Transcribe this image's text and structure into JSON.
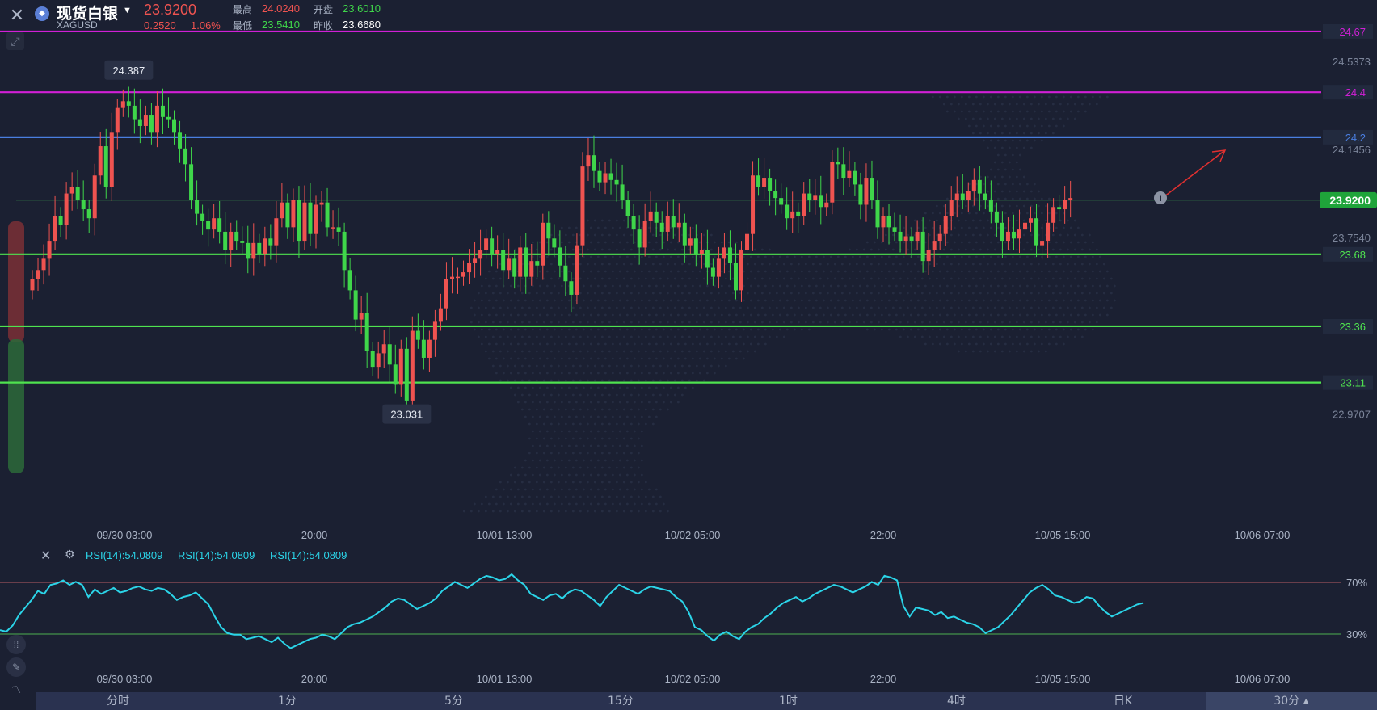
{
  "header": {
    "close_icon": "close-icon",
    "name": "现货白银",
    "symbol": "XAGUSD",
    "price": "23.9200",
    "change": "0.2520",
    "change_pct": "1.06%",
    "high_label": "最高",
    "high": "24.0240",
    "open_label": "开盘",
    "open": "23.6010",
    "low_label": "最低",
    "low": "23.5410",
    "prev_label": "昨收",
    "prev": "23.6680"
  },
  "rsi_legend": [
    "RSI(14):54.0809",
    "RSI(14):54.0809",
    "RSI(14):54.0809"
  ],
  "timeframes": [
    "分时",
    "1分",
    "5分",
    "15分",
    "1时",
    "4时",
    "日K"
  ],
  "timeframe_right": "30分",
  "colors": {
    "up": "#ef5350",
    "down": "#3fd64a",
    "rsi": "#2bd4e8",
    "magenta": "#d11fd6",
    "blue": "#4a7ee0",
    "green_line": "#4fe34f"
  },
  "chart_data": {
    "type": "candlestick",
    "title": "现货白银",
    "y_range": [
      22.8,
      24.72
    ],
    "y_ticks": [
      "24.5373",
      "24.1456",
      "23.7540",
      "22.9707"
    ],
    "x_ticks": [
      "09/30 03:00",
      "20:00",
      "10/01 13:00",
      "10/02 05:00",
      "22:00",
      "10/05 15:00",
      "10/06 07:00"
    ],
    "current_price": "23.9200",
    "horizontal_lines": [
      {
        "value": 24.67,
        "label": "24.67",
        "color": "#d11fd6"
      },
      {
        "value": 24.4,
        "label": "24.4",
        "color": "#d11fd6"
      },
      {
        "value": 24.2,
        "label": "24.2",
        "color": "#4a7ee0"
      },
      {
        "value": 23.68,
        "label": "23.68",
        "color": "#4fe34f"
      },
      {
        "value": 23.36,
        "label": "23.36",
        "color": "#4fe34f"
      },
      {
        "value": 23.11,
        "label": "23.11",
        "color": "#4fe34f"
      }
    ],
    "annotations": [
      {
        "label": "24.387",
        "value": 24.387,
        "index": 17
      },
      {
        "label": "23.031",
        "value": 23.031,
        "index": 66
      }
    ],
    "closes": [
      23.57,
      23.61,
      23.66,
      23.74,
      23.85,
      23.81,
      23.95,
      23.98,
      23.92,
      23.88,
      23.84,
      24.03,
      24.16,
      23.98,
      24.22,
      24.33,
      24.36,
      24.34,
      24.28,
      24.25,
      24.3,
      24.22,
      24.34,
      24.29,
      24.28,
      24.22,
      24.15,
      24.08,
      23.92,
      23.86,
      23.83,
      23.79,
      23.84,
      23.78,
      23.7,
      23.78,
      23.74,
      23.73,
      23.66,
      23.73,
      23.68,
      23.75,
      23.72,
      23.84,
      23.91,
      23.8,
      23.92,
      23.74,
      23.91,
      23.77,
      23.9,
      23.91,
      23.8,
      23.8,
      23.78,
      23.61,
      23.52,
      23.39,
      23.42,
      23.25,
      23.18,
      23.24,
      23.28,
      23.19,
      23.1,
      23.26,
      23.03,
      23.34,
      23.3,
      23.22,
      23.3,
      23.38,
      23.44,
      23.57,
      23.58,
      23.58,
      23.6,
      23.64,
      23.66,
      23.7,
      23.75,
      23.68,
      23.7,
      23.61,
      23.66,
      23.58,
      23.71,
      23.58,
      23.65,
      23.63,
      23.82,
      23.75,
      23.71,
      23.63,
      23.56,
      23.5,
      23.72,
      24.07,
      24.12,
      24.05,
      24.0,
      24.04,
      24.01,
      23.99,
      23.92,
      23.85,
      23.79,
      23.71,
      23.83,
      23.87,
      23.82,
      23.78,
      23.85,
      23.8,
      23.82,
      23.72,
      23.75,
      23.68,
      23.7,
      23.62,
      23.58,
      23.66,
      23.71,
      23.64,
      23.52,
      23.7,
      23.77,
      24.03,
      23.98,
      24.02,
      23.96,
      23.93,
      23.9,
      23.84,
      23.87,
      23.85,
      23.95,
      23.92,
      23.94,
      23.89,
      23.91,
      24.09,
      24.08,
      24.02,
      24.05,
      23.99,
      23.9,
      24.02,
      23.92,
      23.8,
      23.85,
      23.8,
      23.78,
      23.74,
      23.76,
      23.74,
      23.78,
      23.65,
      23.7,
      23.74,
      23.77,
      23.85,
      23.92,
      23.95,
      23.92,
      23.96,
      24.01,
      23.95,
      23.92,
      23.87,
      23.82,
      23.74,
      23.78,
      23.75,
      23.79,
      23.82,
      23.84,
      23.72,
      23.74,
      23.82,
      23.89,
      23.88,
      23.92,
      23.93
    ],
    "rsi": {
      "label": "RSI(14):54.0809",
      "levels": [
        70,
        30
      ],
      "level_labels": [
        "70%",
        "30%"
      ],
      "y_range": [
        20,
        80
      ],
      "values": [
        36,
        35,
        39,
        46,
        51,
        56,
        62,
        60,
        66,
        67,
        69,
        66,
        68,
        66,
        58,
        63,
        60,
        62,
        64,
        61,
        62,
        64,
        65,
        63,
        62,
        64,
        63,
        60,
        56,
        58,
        59,
        61,
        57,
        53,
        45,
        38,
        34,
        33,
        33,
        30,
        31,
        32,
        30,
        28,
        31,
        27,
        24,
        26,
        28,
        30,
        31,
        33,
        32,
        30,
        34,
        38,
        40,
        41,
        43,
        45,
        48,
        51,
        55,
        57,
        56,
        53,
        50,
        52,
        54,
        57,
        62,
        65,
        68,
        66,
        64,
        67,
        70,
        72,
        71,
        69,
        70,
        73,
        69,
        66,
        60,
        58,
        56,
        59,
        60,
        57,
        61,
        63,
        62,
        59,
        56,
        52,
        58,
        62,
        66,
        64,
        62,
        60,
        63,
        65,
        64,
        63,
        62,
        58,
        55,
        48,
        38,
        36,
        32,
        29,
        33,
        35,
        32,
        30,
        35,
        38,
        40,
        44,
        47,
        51,
        54,
        56,
        58,
        55,
        57,
        60,
        62,
        64,
        66,
        65,
        63,
        61,
        63,
        65,
        68,
        66,
        72,
        71,
        69,
        52,
        45,
        51,
        50,
        49,
        46,
        48,
        44,
        45,
        43,
        41,
        40,
        38,
        34,
        36,
        38,
        42,
        46,
        51,
        56,
        61,
        64,
        66,
        63,
        59,
        58,
        56,
        54,
        55,
        58,
        57,
        52,
        48,
        45,
        47,
        49,
        51,
        53,
        54
      ]
    }
  }
}
